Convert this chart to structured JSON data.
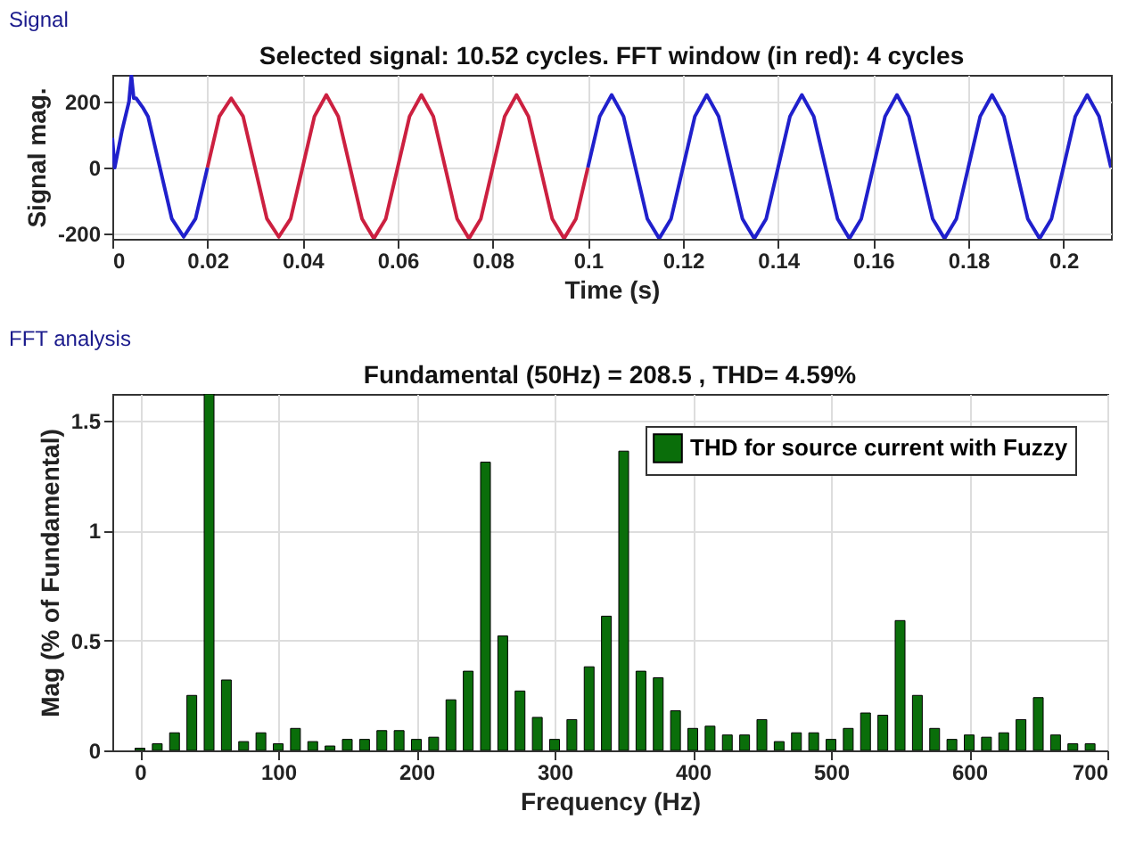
{
  "chart_data": [
    {
      "type": "line",
      "title": "Selected signal: 10.52 cycles. FFT window (in red): 4 cycles",
      "xlabel": "Time (s)",
      "ylabel": "Signal mag.",
      "annotations": [
        "Signal"
      ],
      "xlim": [
        0,
        0.21
      ],
      "xticks": [
        0,
        0.02,
        0.04,
        0.06,
        0.08,
        0.1,
        0.12,
        0.14,
        0.16,
        0.18,
        0.2
      ],
      "ylim": [
        -216,
        281
      ],
      "yticks": [
        -200,
        0,
        200
      ],
      "grid": true,
      "series": [
        {
          "color": "#2020cc",
          "x": [
            0,
            0.0005,
            0.002,
            0.0035,
            0.004,
            0.0045,
            0.005,
            0.0065,
            0.0075,
            0.01,
            0.0125,
            0.015,
            0.0175,
            0.02
          ],
          "values": [
            90,
            0,
            110,
            200,
            280,
            210,
            210,
            180,
            155,
            0,
            -155,
            -210,
            -155,
            0
          ]
        },
        {
          "color": "#cc2040",
          "x": [
            0.02,
            0.0225,
            0.025,
            0.0275,
            0.03,
            0.0325,
            0.035,
            0.0375,
            0.04,
            0.0425,
            0.045,
            0.0475,
            0.05,
            0.0525,
            0.055,
            0.0575,
            0.06,
            0.0625,
            0.065,
            0.0675,
            0.07,
            0.0725,
            0.075,
            0.0775,
            0.08,
            0.0825,
            0.085,
            0.0875,
            0.09,
            0.0925,
            0.095,
            0.0975,
            0.1
          ],
          "values": [
            0,
            155,
            210,
            155,
            0,
            -155,
            -210,
            -155,
            0,
            155,
            220,
            155,
            0,
            -155,
            -215,
            -155,
            0,
            155,
            220,
            155,
            0,
            -155,
            -215,
            -155,
            0,
            155,
            220,
            155,
            0,
            -155,
            -215,
            -155,
            0
          ]
        },
        {
          "color": "#2020cc",
          "x": [
            0.1,
            0.1025,
            0.105,
            0.1075,
            0.11,
            0.1125,
            0.115,
            0.1175,
            0.12,
            0.1225,
            0.125,
            0.1275,
            0.13,
            0.1325,
            0.135,
            0.1375,
            0.14,
            0.1425,
            0.145,
            0.1475,
            0.15,
            0.1525,
            0.155,
            0.1575,
            0.16,
            0.1625,
            0.165,
            0.1675,
            0.17,
            0.1725,
            0.175,
            0.1775,
            0.18,
            0.1825,
            0.185,
            0.1875,
            0.19,
            0.1925,
            0.195,
            0.1975,
            0.2,
            0.2025,
            0.205,
            0.2075,
            0.21
          ],
          "values": [
            0,
            155,
            220,
            155,
            0,
            -155,
            -215,
            -155,
            0,
            155,
            220,
            155,
            0,
            -155,
            -215,
            -155,
            0,
            155,
            220,
            155,
            0,
            -155,
            -215,
            -155,
            0,
            155,
            220,
            155,
            0,
            -155,
            -215,
            -155,
            0,
            155,
            220,
            155,
            0,
            -155,
            -215,
            -155,
            0,
            155,
            220,
            155,
            0
          ]
        }
      ]
    },
    {
      "type": "bar",
      "title": "Fundamental (50Hz) = 208.5 , THD= 4.59%",
      "xlabel": "Frequency (Hz)",
      "ylabel": "Mag (% of Fundamental)",
      "annotations": [
        "FFT analysis"
      ],
      "xlim": [
        -20,
        700
      ],
      "xticks": [
        0,
        100,
        200,
        300,
        400,
        500,
        600,
        700
      ],
      "ylim": [
        0,
        1.62
      ],
      "yticks": [
        0,
        0.5,
        1,
        1.5
      ],
      "grid": true,
      "legend": "top right",
      "x": [
        0,
        12.5,
        25,
        37.5,
        50,
        62.5,
        75,
        87.5,
        100,
        112.5,
        125,
        137.5,
        150,
        162.5,
        175,
        187.5,
        200,
        212.5,
        225,
        237.5,
        250,
        262.5,
        275,
        287.5,
        300,
        312.5,
        325,
        337.5,
        350,
        362.5,
        375,
        387.5,
        400,
        412.5,
        425,
        437.5,
        450,
        462.5,
        475,
        487.5,
        500,
        512.5,
        525,
        537.5,
        550,
        562.5,
        575,
        587.5,
        600,
        612.5,
        625,
        637.5,
        650,
        662.5,
        675,
        687.5
      ],
      "series": [
        {
          "name": "THD for source current with Fuzzy",
          "color": "#0a6e0a",
          "values": [
            0.01,
            0.03,
            0.08,
            0.25,
            1.62,
            0.32,
            0.04,
            0.08,
            0.03,
            0.1,
            0.04,
            0.02,
            0.05,
            0.05,
            0.09,
            0.09,
            0.05,
            0.06,
            0.23,
            0.36,
            1.31,
            0.52,
            0.27,
            0.15,
            0.05,
            0.14,
            0.38,
            0.61,
            1.36,
            0.36,
            0.33,
            0.18,
            0.1,
            0.11,
            0.07,
            0.07,
            0.14,
            0.04,
            0.08,
            0.08,
            0.05,
            0.1,
            0.17,
            0.16,
            0.59,
            0.25,
            0.1,
            0.05,
            0.07,
            0.06,
            0.08,
            0.14,
            0.24,
            0.07,
            0.03,
            0.03
          ]
        }
      ]
    }
  ]
}
